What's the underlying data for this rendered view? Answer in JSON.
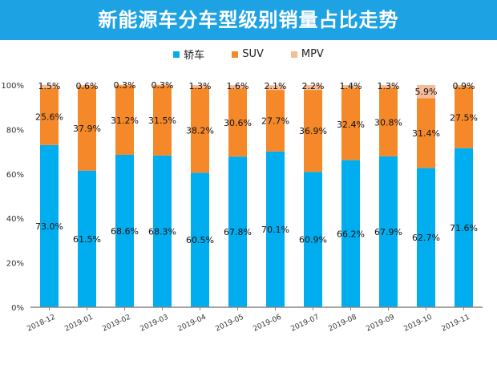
{
  "header": {
    "title": "新能源车分车型级别销量占比走势"
  },
  "chart_data": {
    "type": "bar",
    "stacked": true,
    "categories": [
      "2018-12",
      "2019-01",
      "2019-02",
      "2019-03",
      "2019-04",
      "2019-05",
      "2019-06",
      "2019-07",
      "2019-08",
      "2019-09",
      "2019-10",
      "2019-11"
    ],
    "series": [
      {
        "name": "轿车",
        "color": "#00adee",
        "values": [
          73.0,
          61.5,
          68.6,
          68.3,
          60.5,
          67.8,
          70.1,
          60.9,
          66.2,
          67.9,
          62.7,
          71.6
        ]
      },
      {
        "name": "SUV",
        "color": "#f5892a",
        "values": [
          25.6,
          37.9,
          31.2,
          31.5,
          38.2,
          30.6,
          27.7,
          36.9,
          32.4,
          30.8,
          31.4,
          27.5
        ]
      },
      {
        "name": "MPV",
        "color": "#f6bc98",
        "values": [
          1.5,
          0.6,
          0.3,
          0.3,
          1.3,
          1.6,
          2.1,
          2.2,
          1.4,
          1.3,
          5.9,
          0.9
        ]
      }
    ],
    "y_ticks": [
      "0%",
      "20%",
      "40%",
      "60%",
      "80%",
      "100%"
    ],
    "ylim": [
      0,
      100
    ],
    "legend": "top-center",
    "grid": false
  }
}
